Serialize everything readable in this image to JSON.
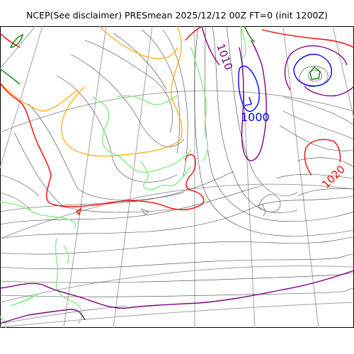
{
  "title": "NCEP(See disclaimer) PRESmean 2025/12/12 00Z FT=0 (init 1200Z)",
  "isobar_labels": [
    {
      "text": "1010",
      "color": "#800080"
    },
    {
      "text": "1000",
      "color": "#0000ff"
    },
    {
      "text": "1020",
      "color": "#ff0000"
    }
  ],
  "colors": {
    "background": "#ffffff",
    "graticule": "#a0a0a0",
    "isobar_thin": "#404040",
    "coastline": "#90ee90",
    "isobar_1020": "#ff0000",
    "isobar_1010": "#800080",
    "isobar_1000": "#0000ff",
    "orange_contour": "#ffa500",
    "dark_green": "#008000"
  }
}
